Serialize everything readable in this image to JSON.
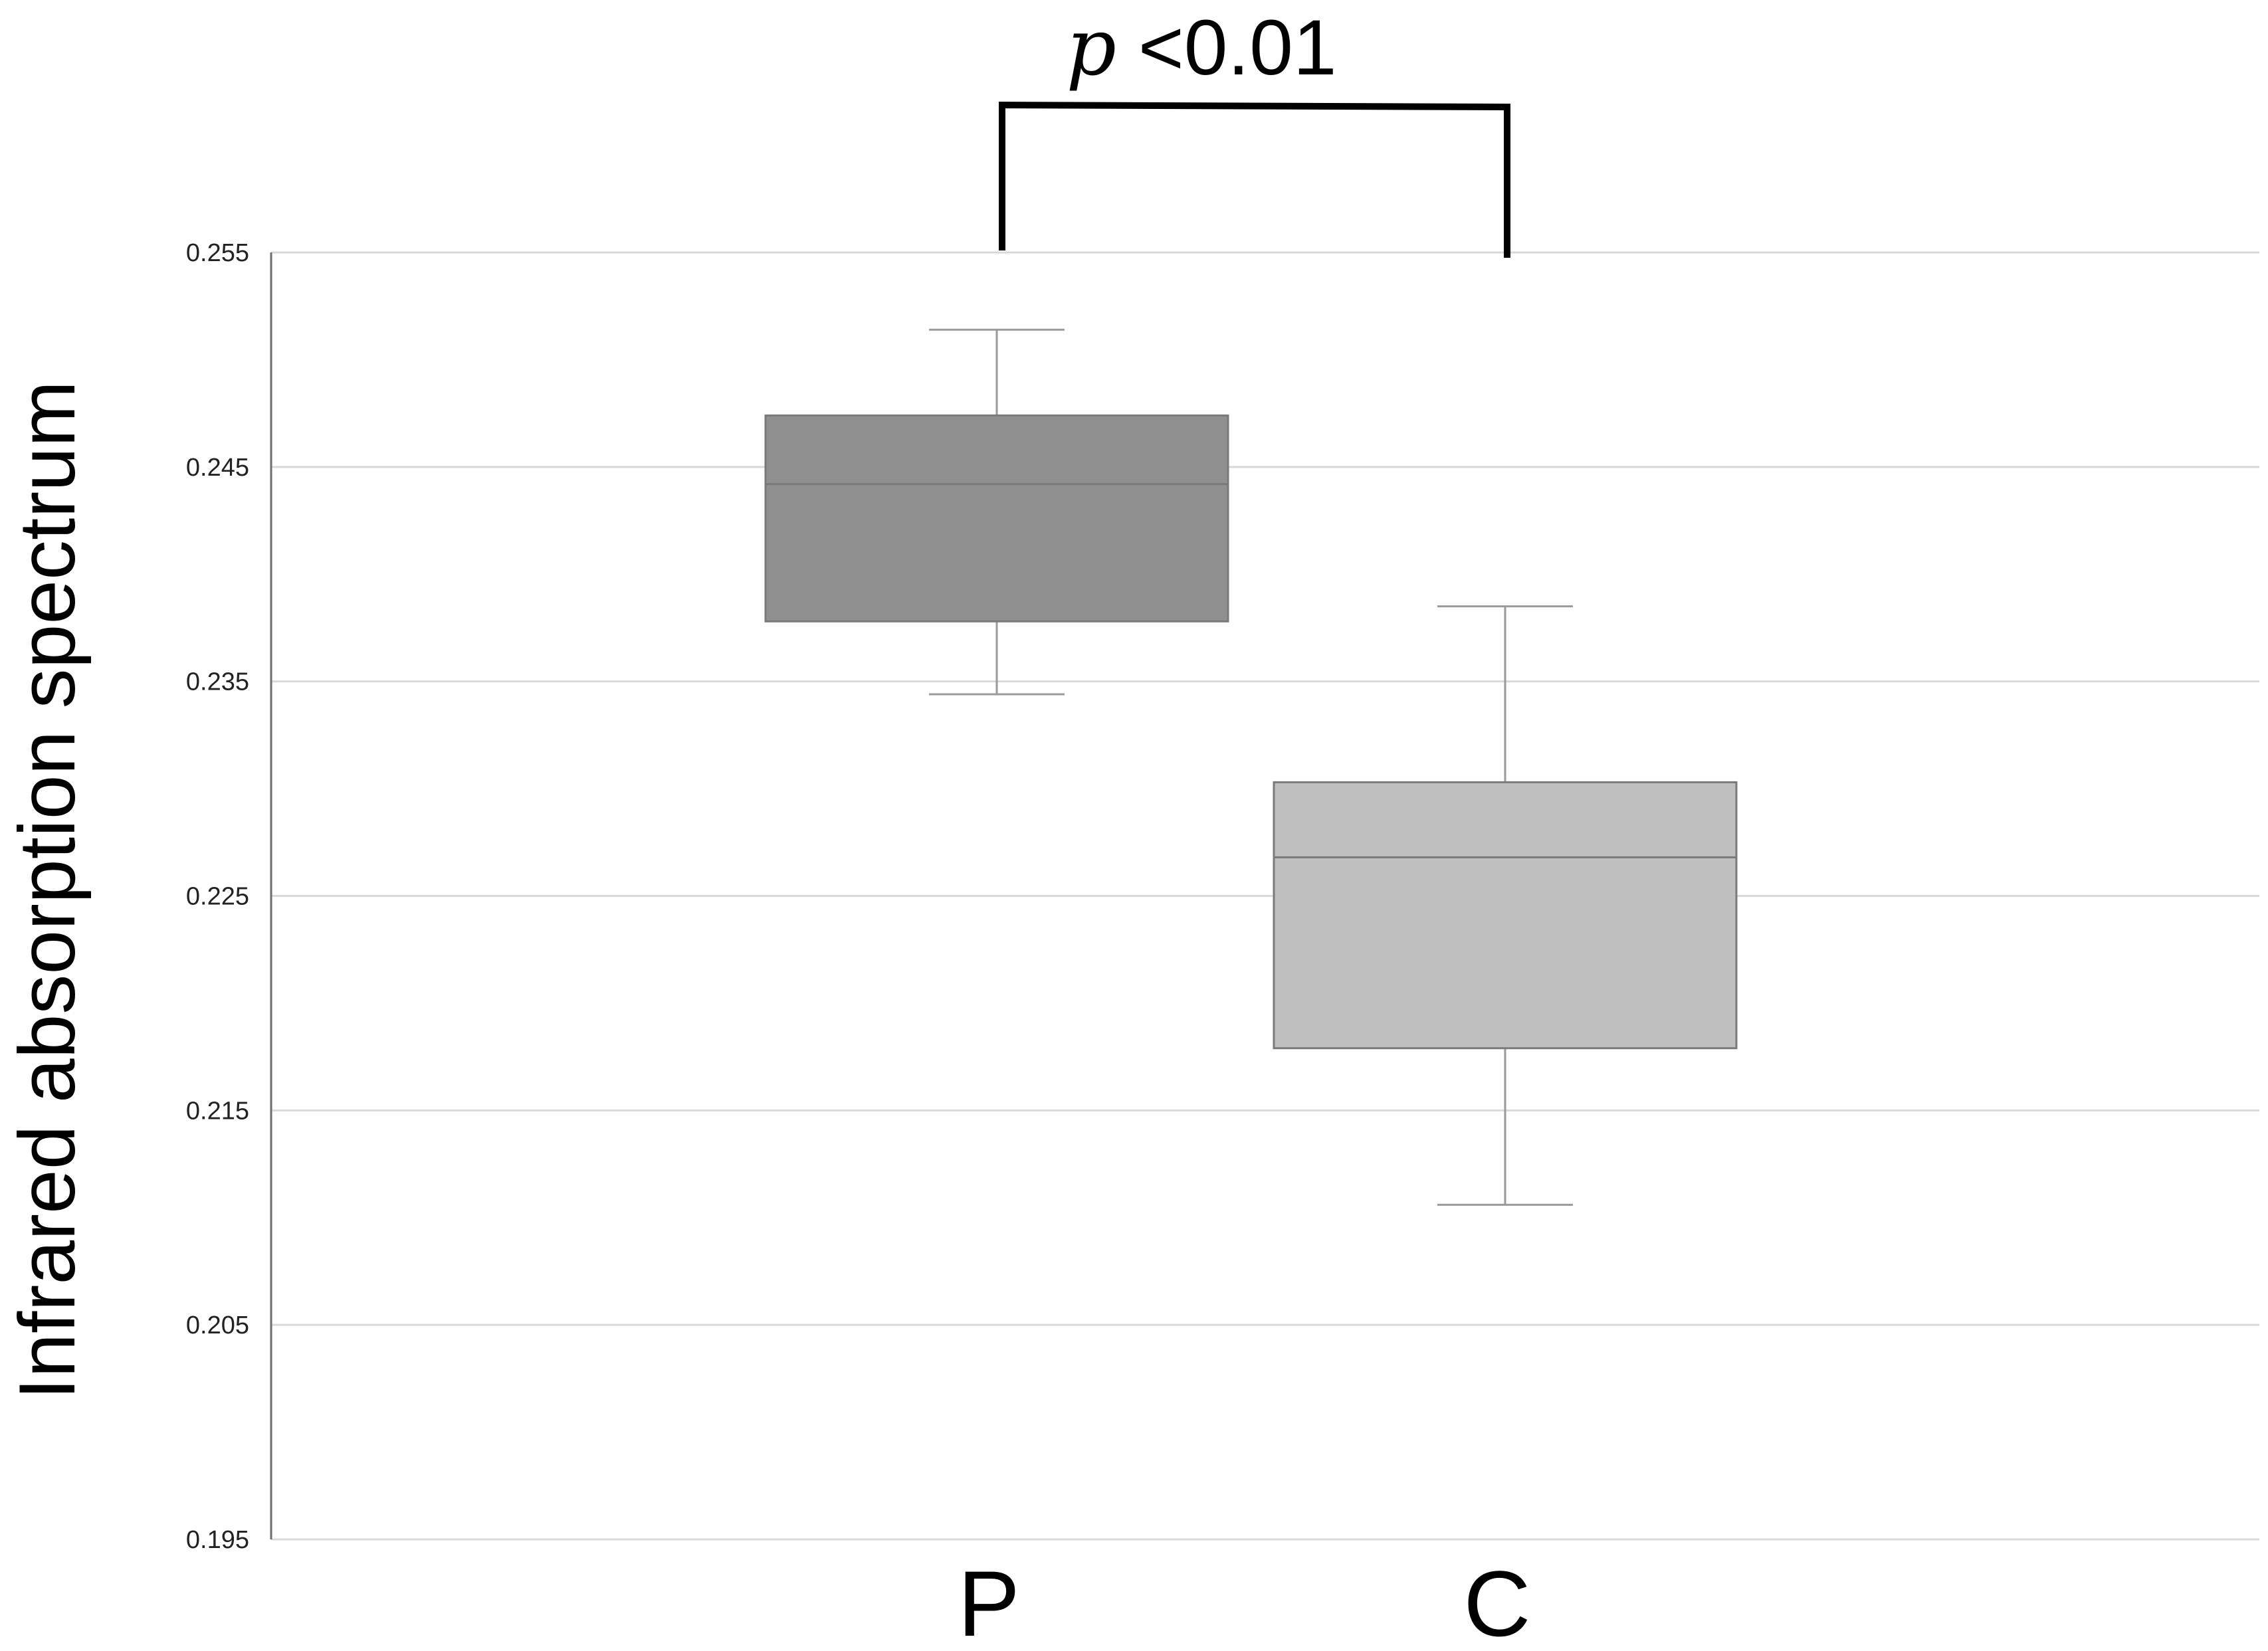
{
  "chart_data": {
    "type": "box",
    "categories": [
      "P",
      "C"
    ],
    "ylabel": "Infrared absorption spectrum",
    "xlabel": "",
    "ylim": [
      0.195,
      0.255
    ],
    "yticks": [
      "0.195",
      "0.205",
      "0.215",
      "0.225",
      "0.235",
      "0.245",
      "0.255"
    ],
    "grid": true,
    "boxes": [
      {
        "category": "P",
        "min": 0.2344,
        "q1": 0.2378,
        "median": 0.2442,
        "q3": 0.2474,
        "max": 0.2514,
        "color": "#909090"
      },
      {
        "category": "C",
        "min": 0.2106,
        "q1": 0.2179,
        "median": 0.2268,
        "q3": 0.2303,
        "max": 0.2385,
        "color": "#bfbfbf"
      }
    ],
    "annotation": {
      "symbol": "p",
      "text": " <0.01",
      "between": [
        "P",
        "C"
      ]
    }
  }
}
